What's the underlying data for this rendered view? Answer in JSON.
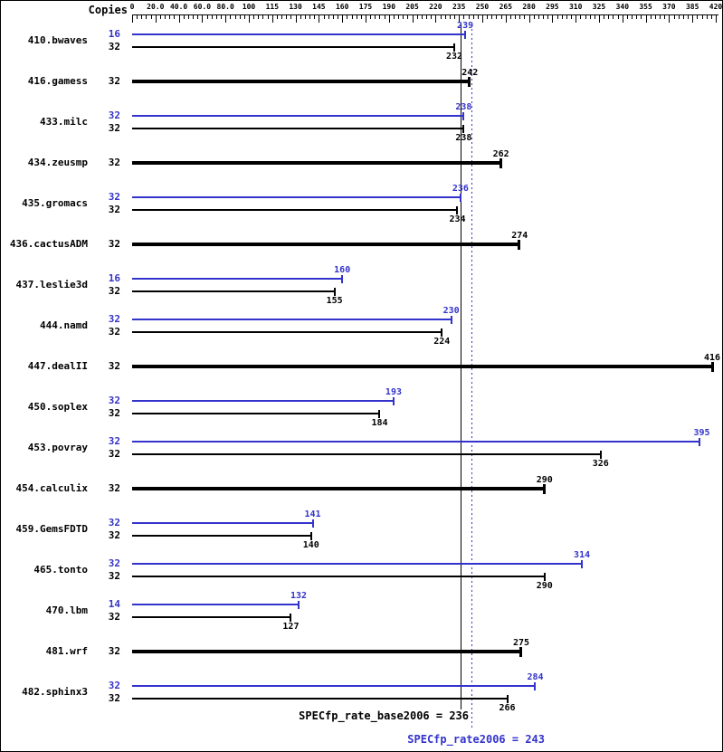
{
  "header": {
    "copies_label": "Copies"
  },
  "chart_data": {
    "type": "bar",
    "orientation": "horizontal",
    "title": "",
    "x_ticks": [
      {
        "value": 0,
        "label": "0"
      },
      {
        "value": 20,
        "label": "20.0"
      },
      {
        "value": 40,
        "label": "40.0"
      },
      {
        "value": 60,
        "label": "60.0"
      },
      {
        "value": 80,
        "label": "80.0"
      },
      {
        "value": 100,
        "label": "100"
      },
      {
        "value": 115,
        "label": "115"
      },
      {
        "value": 130,
        "label": "130"
      },
      {
        "value": 145,
        "label": "145"
      },
      {
        "value": 160,
        "label": "160"
      },
      {
        "value": 175,
        "label": "175"
      },
      {
        "value": 190,
        "label": "190"
      },
      {
        "value": 205,
        "label": "205"
      },
      {
        "value": 220,
        "label": "220"
      },
      {
        "value": 235,
        "label": "235"
      },
      {
        "value": 250,
        "label": "250"
      },
      {
        "value": 265,
        "label": "265"
      },
      {
        "value": 280,
        "label": "280"
      },
      {
        "value": 295,
        "label": "295"
      },
      {
        "value": 310,
        "label": "310"
      },
      {
        "value": 325,
        "label": "325"
      },
      {
        "value": 340,
        "label": "340"
      },
      {
        "value": 355,
        "label": "355"
      },
      {
        "value": 370,
        "label": "370"
      },
      {
        "value": 385,
        "label": "385"
      },
      {
        "value": 420,
        "label": "420"
      }
    ],
    "benchmarks": [
      {
        "name": "410.bwaves",
        "bars": [
          {
            "kind": "peak",
            "copies": "16",
            "value": 239
          },
          {
            "kind": "base",
            "copies": "32",
            "value": 232
          }
        ]
      },
      {
        "name": "416.gamess",
        "bars": [
          {
            "kind": "base",
            "copies": "32",
            "value": 242
          }
        ]
      },
      {
        "name": "433.milc",
        "bars": [
          {
            "kind": "peak",
            "copies": "32",
            "value": 238
          },
          {
            "kind": "base",
            "copies": "32",
            "value": 238
          }
        ]
      },
      {
        "name": "434.zeusmp",
        "bars": [
          {
            "kind": "base",
            "copies": "32",
            "value": 262
          }
        ]
      },
      {
        "name": "435.gromacs",
        "bars": [
          {
            "kind": "peak",
            "copies": "32",
            "value": 236
          },
          {
            "kind": "base",
            "copies": "32",
            "value": 234
          }
        ]
      },
      {
        "name": "436.cactusADM",
        "bars": [
          {
            "kind": "base",
            "copies": "32",
            "value": 274
          }
        ]
      },
      {
        "name": "437.leslie3d",
        "bars": [
          {
            "kind": "peak",
            "copies": "16",
            "value": 160
          },
          {
            "kind": "base",
            "copies": "32",
            "value": 155
          }
        ]
      },
      {
        "name": "444.namd",
        "bars": [
          {
            "kind": "peak",
            "copies": "32",
            "value": 230
          },
          {
            "kind": "base",
            "copies": "32",
            "value": 224
          }
        ]
      },
      {
        "name": "447.dealII",
        "bars": [
          {
            "kind": "base",
            "copies": "32",
            "value": 416
          }
        ]
      },
      {
        "name": "450.soplex",
        "bars": [
          {
            "kind": "peak",
            "copies": "32",
            "value": 193
          },
          {
            "kind": "base",
            "copies": "32",
            "value": 184
          }
        ]
      },
      {
        "name": "453.povray",
        "bars": [
          {
            "kind": "peak",
            "copies": "32",
            "value": 395
          },
          {
            "kind": "base",
            "copies": "32",
            "value": 326
          }
        ]
      },
      {
        "name": "454.calculix",
        "bars": [
          {
            "kind": "base",
            "copies": "32",
            "value": 290
          }
        ]
      },
      {
        "name": "459.GemsFDTD",
        "bars": [
          {
            "kind": "peak",
            "copies": "32",
            "value": 141
          },
          {
            "kind": "base",
            "copies": "32",
            "value": 140
          }
        ]
      },
      {
        "name": "465.tonto",
        "bars": [
          {
            "kind": "peak",
            "copies": "32",
            "value": 314
          },
          {
            "kind": "base",
            "copies": "32",
            "value": 290
          }
        ]
      },
      {
        "name": "470.lbm",
        "bars": [
          {
            "kind": "peak",
            "copies": "14",
            "value": 132
          },
          {
            "kind": "base",
            "copies": "32",
            "value": 127
          }
        ]
      },
      {
        "name": "481.wrf",
        "bars": [
          {
            "kind": "base",
            "copies": "32",
            "value": 275
          }
        ]
      },
      {
        "name": "482.sphinx3",
        "bars": [
          {
            "kind": "peak",
            "copies": "32",
            "value": 284
          },
          {
            "kind": "base",
            "copies": "32",
            "value": 266
          }
        ]
      }
    ],
    "base_mean": 236,
    "peak_mean": 243,
    "legend": {
      "peak_series": "SPECfp_rate2006 (peak)",
      "base_series": "SPECfp_rate_base2006 (base)"
    }
  },
  "footer": {
    "base_label": "SPECfp_rate_base2006 = 236",
    "peak_label": "SPECfp_rate2006 = 243"
  },
  "colors": {
    "peak_blue": "#3333cc",
    "base_black": "#000000"
  }
}
